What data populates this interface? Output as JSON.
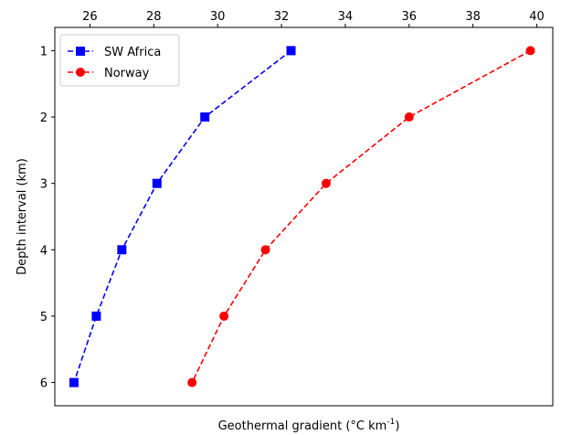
{
  "chart_data": {
    "type": "line",
    "title": "",
    "xlabel_main": "Geothermal gradient (°C km",
    "xlabel_sup": "-1",
    "xlabel_close": ")",
    "ylabel": "Depth interval (km)",
    "x_axis_position": "top",
    "y_inverted": true,
    "xlim": [
      24.9,
      40.5
    ],
    "ylim": [
      6.35,
      0.65
    ],
    "xticks": [
      26,
      28,
      30,
      32,
      34,
      36,
      38,
      40
    ],
    "yticks": [
      1,
      2,
      3,
      4,
      5,
      6
    ],
    "grid": false,
    "legend_position": "top-left",
    "series": [
      {
        "name": "SW Africa",
        "color": "#0000ff",
        "marker": "square",
        "linestyle": "dashed",
        "points": [
          {
            "x": 32.3,
            "y": 1
          },
          {
            "x": 29.6,
            "y": 2
          },
          {
            "x": 28.1,
            "y": 3
          },
          {
            "x": 27.0,
            "y": 4
          },
          {
            "x": 26.2,
            "y": 5
          },
          {
            "x": 25.5,
            "y": 6
          }
        ]
      },
      {
        "name": "Norway",
        "color": "#ff0000",
        "marker": "circle",
        "linestyle": "dashed",
        "points": [
          {
            "x": 39.8,
            "y": 1
          },
          {
            "x": 36.0,
            "y": 2
          },
          {
            "x": 33.4,
            "y": 3
          },
          {
            "x": 31.5,
            "y": 4
          },
          {
            "x": 30.2,
            "y": 5
          },
          {
            "x": 29.2,
            "y": 6
          }
        ]
      }
    ]
  }
}
